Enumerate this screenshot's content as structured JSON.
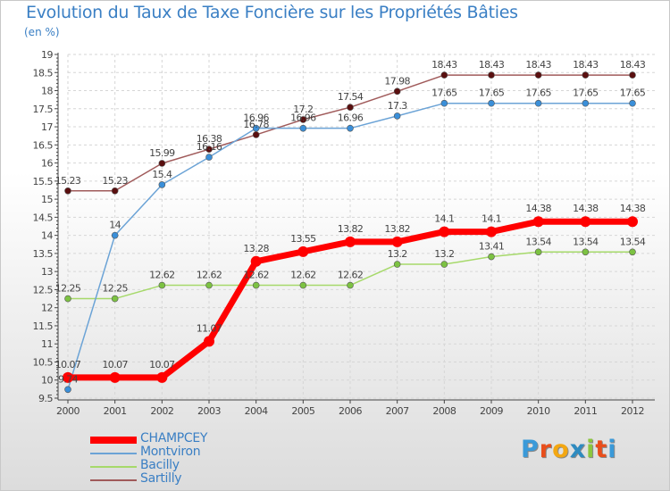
{
  "title": "Evolution du Taux de Taxe Foncière sur les Propriétés Bâties",
  "unit_label": "(en %)",
  "logo_text": "Proxiti",
  "logo_colors": [
    "#3a9ad9",
    "#e94e1b",
    "#f3a712",
    "#2e8bc0",
    "#8cc63e",
    "#e94e1b",
    "#3a9ad9"
  ],
  "chart_data": {
    "type": "line",
    "title": "Evolution du Taux de Taxe Foncière sur les Propriétés Bâties",
    "ylabel": "(en %)",
    "xlabel": "",
    "x": [
      "2000",
      "2001",
      "2002",
      "2003",
      "2004",
      "2005",
      "2006",
      "2007",
      "2008",
      "2009",
      "2010",
      "2011",
      "2012"
    ],
    "ylim": [
      9.5,
      19
    ],
    "yticks": [
      "9.5",
      "10",
      "10.5",
      "11",
      "11.5",
      "12",
      "12.5",
      "13",
      "13.5",
      "14",
      "14.5",
      "15",
      "15.5",
      "16",
      "16.5",
      "17",
      "17.5",
      "18",
      "18.5",
      "19"
    ],
    "legend_position": "bottom-left",
    "series": [
      {
        "name": "CHAMPCEY",
        "color": "#ff0000",
        "marker": "#ff0000",
        "width": 7,
        "radius": 6,
        "values": [
          10.07,
          10.07,
          10.07,
          11.07,
          13.28,
          13.55,
          13.82,
          13.82,
          14.1,
          14.1,
          14.38,
          14.38,
          14.38
        ],
        "labels": [
          "10.07",
          "10.07",
          "10.07",
          "11.07",
          "13.28",
          "13.55",
          "13.82",
          "13.82",
          "14.1",
          "14.1",
          "14.38",
          "14.38",
          "14.38"
        ]
      },
      {
        "name": "Montviron",
        "color": "#6ba3d6",
        "marker": "#3a8fd9",
        "width": 1.5,
        "radius": 3.5,
        "values": [
          9.74,
          14.0,
          15.4,
          16.16,
          16.96,
          16.96,
          16.96,
          17.3,
          17.65,
          17.65,
          17.65,
          17.65,
          17.65
        ],
        "labels": [
          "9.74",
          "14",
          "15.4",
          "16.16",
          "16.96",
          "16.96",
          "16.96",
          "17.3",
          "17.65",
          "17.65",
          "17.65",
          "17.65",
          "17.65"
        ]
      },
      {
        "name": "Bacilly",
        "color": "#a6d96a",
        "marker": "#7cc242",
        "width": 1.5,
        "radius": 3.5,
        "values": [
          12.25,
          12.25,
          12.62,
          12.62,
          12.62,
          12.62,
          12.62,
          13.2,
          13.2,
          13.41,
          13.54,
          13.54,
          13.54
        ],
        "labels": [
          "12.25",
          "12.25",
          "12.62",
          "12.62",
          "12.62",
          "12.62",
          "12.62",
          "13.2",
          "13.2",
          "13.41",
          "13.54",
          "13.54",
          "13.54"
        ]
      },
      {
        "name": "Sartilly",
        "color": "#a05a5a",
        "marker": "#5a0f0f",
        "width": 1.5,
        "radius": 3.5,
        "values": [
          15.23,
          15.23,
          15.99,
          16.38,
          16.78,
          17.2,
          17.54,
          17.98,
          18.43,
          18.43,
          18.43,
          18.43,
          18.43
        ],
        "labels": [
          "15.23",
          "15.23",
          "15.99",
          "16.38",
          "16.78",
          "17.2",
          "17.54",
          "17.98",
          "18.43",
          "18.43",
          "18.43",
          "18.43",
          "18.43"
        ]
      }
    ]
  }
}
